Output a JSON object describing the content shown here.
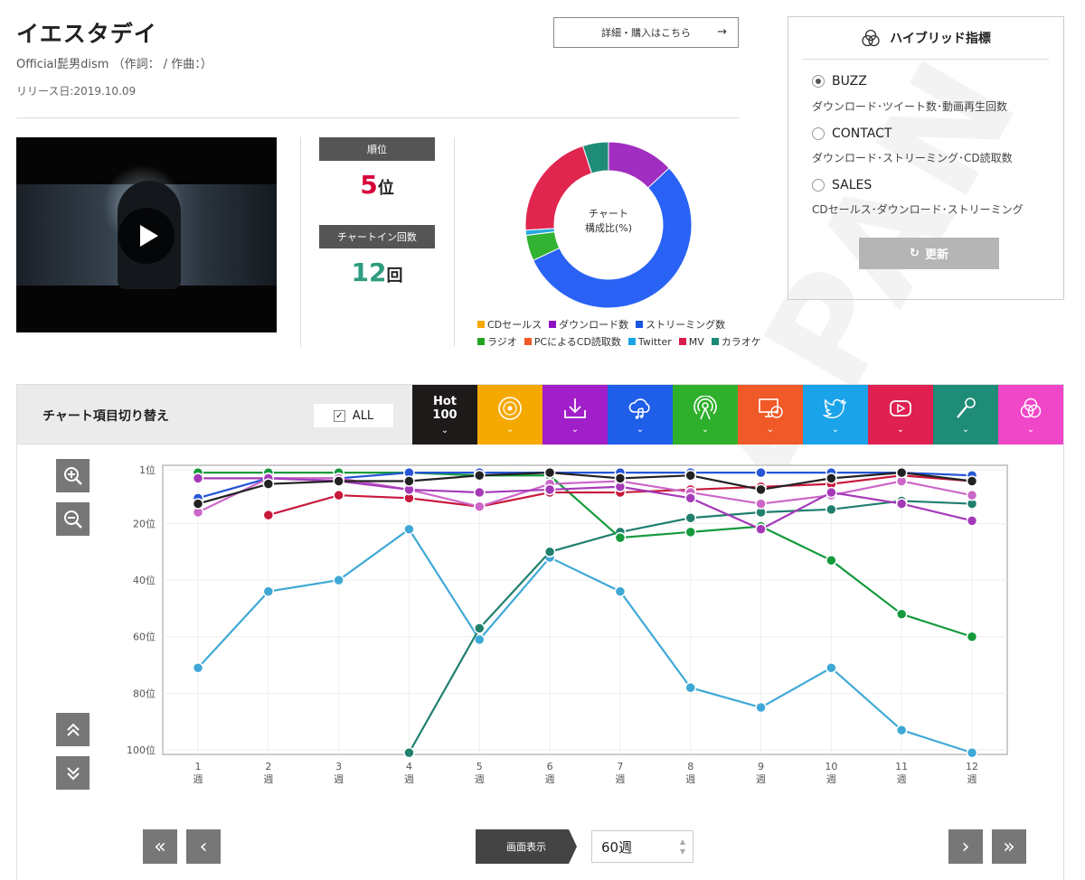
{
  "song": {
    "title": "イエスタデイ",
    "artist_line": "Official髭男dism （作詞： / 作曲：）",
    "release": "リリース日:2019.10.09",
    "buy_label": "詳細・購入はこちら",
    "buy_arrow": "→"
  },
  "rank": {
    "rank_label": "順位",
    "rank_value": "5",
    "rank_unit": "位",
    "count_label": "チャートイン回数",
    "count_value": "12",
    "count_unit": "回",
    "rank_color": "#d6003a",
    "count_color": "#2e9c7e"
  },
  "composition": {
    "center_line1": "チャート",
    "center_line2": "構成比(%)",
    "slices": [
      {
        "name": "ダウンロード数",
        "percent": 13,
        "color": "#a12ec0"
      },
      {
        "name": "ストリーミング数",
        "percent": 55,
        "color": "#2962f5"
      },
      {
        "name": "ラジオ",
        "percent": 5,
        "color": "#34b233"
      },
      {
        "name": "Twitter",
        "percent": 1,
        "color": "#29a8e0"
      },
      {
        "name": "MV",
        "percent": 21,
        "color": "#e0264f"
      },
      {
        "name": "カラオケ",
        "percent": 5,
        "color": "#1f8c78"
      }
    ],
    "legend_row1": [
      {
        "label": "CDセールス",
        "color": "#f5a800"
      },
      {
        "label": "ダウンロード数",
        "color": "#9013c2"
      },
      {
        "label": "ストリーミング数",
        "color": "#1b55e0"
      }
    ],
    "legend_row2": [
      {
        "label": "ラジオ",
        "color": "#25a424"
      },
      {
        "label": "PCによるCD読取数",
        "color": "#f05a28"
      },
      {
        "label": "Twitter",
        "color": "#1aa3e8"
      },
      {
        "label": "MV",
        "color": "#d81b4a"
      },
      {
        "label": "カラオケ",
        "color": "#1a8a76"
      }
    ]
  },
  "hybrid": {
    "title": "ハイブリッド指標",
    "options": [
      {
        "label": "BUZZ",
        "desc": "ダウンロード･ツイート数･動画再生回数",
        "selected": true
      },
      {
        "label": "CONTACT",
        "desc": "ダウンロード･ストリーミング･CD読取数",
        "selected": false
      },
      {
        "label": "SALES",
        "desc": "CDセールス･ダウンロード･ストリーミング",
        "selected": false
      }
    ],
    "update_label": "更新",
    "update_icon": "↻"
  },
  "watermark": "JAPAN",
  "toggle": {
    "label": "チャート項目切り替え",
    "all_label": "ALL",
    "all_check": "✓",
    "hot_line1": "Hot",
    "hot_line2": "100",
    "chevron": "⌄",
    "tiles": [
      {
        "name": "cd-sales",
        "color": "#f5a800",
        "icon": "cd-icon"
      },
      {
        "name": "download",
        "color": "#a11fc9",
        "icon": "download-icon"
      },
      {
        "name": "streaming",
        "color": "#1e5ee8",
        "icon": "cloud-music-icon"
      },
      {
        "name": "radio",
        "color": "#2fb02c",
        "icon": "radio-icon"
      },
      {
        "name": "pc-cd-read",
        "color": "#f05a28",
        "icon": "pc-cd-icon"
      },
      {
        "name": "twitter",
        "color": "#1aa3e8",
        "icon": "twitter-icon"
      },
      {
        "name": "mv",
        "color": "#df2050",
        "icon": "youtube-icon"
      },
      {
        "name": "karaoke",
        "color": "#1e8c76",
        "icon": "microphone-icon"
      },
      {
        "name": "hybrid",
        "color": "#f046c8",
        "icon": "hybrid-icon"
      }
    ]
  },
  "chart_data": {
    "type": "line",
    "y_axis": {
      "ticks": [
        "1位",
        "20位",
        "40位",
        "60位",
        "80位",
        "100位"
      ],
      "tick_values": [
        1,
        20,
        40,
        60,
        80,
        100
      ],
      "reversed": true,
      "range": [
        1,
        100
      ]
    },
    "x_axis": {
      "week_word": "週",
      "weeks": [
        "1",
        "2",
        "3",
        "4",
        "5",
        "6",
        "7",
        "8",
        "9",
        "10",
        "11",
        "12"
      ]
    },
    "series": [
      {
        "key": "twitter",
        "color": "#3fa9d6",
        "values": [
          71,
          44,
          40,
          22,
          61,
          32,
          44,
          78,
          85,
          71,
          93,
          101
        ]
      },
      {
        "key": "karaoke",
        "color": "#217f6e",
        "values": [
          null,
          null,
          null,
          101,
          57,
          30,
          23,
          18,
          16,
          15,
          12,
          13
        ]
      },
      {
        "key": "radio",
        "color": "#159a3c",
        "values": [
          2,
          2,
          2,
          2,
          3,
          3,
          25,
          23,
          21,
          33,
          52,
          60
        ]
      },
      {
        "key": "mv",
        "color": "#c8183c",
        "values": [
          null,
          17,
          10,
          11,
          14,
          9,
          9,
          8,
          7,
          6,
          3,
          5
        ]
      },
      {
        "key": "streaming",
        "color": "#2656d6",
        "values": [
          11,
          4,
          4,
          2,
          2,
          2,
          2,
          2,
          2,
          2,
          2,
          3
        ]
      },
      {
        "key": "mv-pink",
        "color": "#cc66c8",
        "values": [
          16,
          4,
          4,
          8,
          14,
          6,
          5,
          9,
          13,
          10,
          5,
          10
        ]
      },
      {
        "key": "download",
        "color": "#a43ab8",
        "values": [
          4,
          4,
          5,
          8,
          9,
          8,
          7,
          11,
          22,
          9,
          13,
          19
        ]
      },
      {
        "key": "hot100",
        "color": "#222222",
        "values": [
          13,
          6,
          5,
          5,
          3,
          2,
          4,
          3,
          8,
          4,
          2,
          5
        ]
      }
    ]
  },
  "pager": {
    "first": "«",
    "prev": "‹",
    "next": "›",
    "last": "»",
    "display_label": "画面表示",
    "display_value": "60週"
  }
}
